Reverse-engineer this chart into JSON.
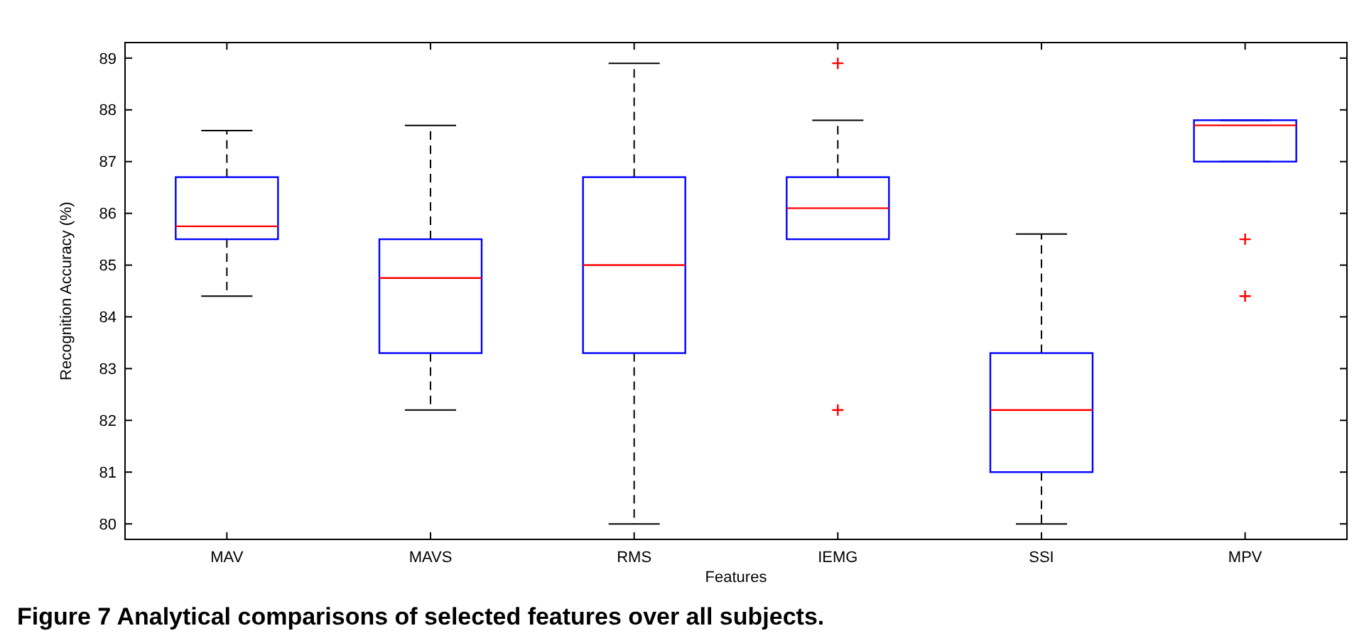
{
  "chart_data": {
    "type": "box",
    "xlabel": "Features",
    "ylabel": "Recognition Accuracy (%)",
    "categories": [
      "MAV",
      "MAVS",
      "RMS",
      "IEMG",
      "SSI",
      "MPV"
    ],
    "boxes": [
      {
        "low": 84.4,
        "q1": 85.5,
        "median": 85.75,
        "q3": 86.7,
        "high": 87.6
      },
      {
        "low": 82.2,
        "q1": 83.3,
        "median": 84.75,
        "q3": 85.5,
        "high": 87.7
      },
      {
        "low": 80.0,
        "q1": 83.3,
        "median": 85.0,
        "q3": 86.7,
        "high": 88.9
      },
      {
        "low": 85.5,
        "q1": 85.5,
        "median": 86.1,
        "q3": 86.7,
        "high": 87.8,
        "outliers": [
          88.9,
          82.2
        ]
      },
      {
        "low": 80.0,
        "q1": 81.0,
        "median": 82.2,
        "q3": 83.3,
        "high": 85.6
      },
      {
        "low": 87.0,
        "q1": 87.0,
        "median": 87.7,
        "q3": 87.8,
        "high": 87.8,
        "outliers": [
          85.5,
          84.4
        ]
      }
    ],
    "color": "#0000ff",
    "ylim": [
      79.7,
      89.3
    ],
    "yticks": [
      80,
      81,
      82,
      83,
      84,
      85,
      86,
      87,
      88,
      89
    ],
    "annotations": [
      "Figure 7 Analytical comparisons of selected features over all subjects."
    ]
  }
}
